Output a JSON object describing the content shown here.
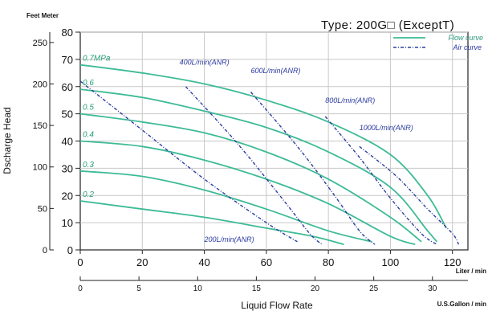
{
  "chart_data": {
    "type": "line",
    "title": "Type: 200G□ (ExceptT)",
    "units_label": "Feet Meter",
    "ylabel": "Dscharge Head",
    "xlabel": "Liquid Flow Rate",
    "x_unit_top": "Liter / min",
    "x_unit_bottom": "U.S.Gallon / min",
    "xlim": [
      0,
      125
    ],
    "ylim": [
      0,
      80
    ],
    "grid": true,
    "legend_position": "top-right",
    "x_ticks": [
      "0",
      "20",
      "40",
      "60",
      "80",
      "100",
      "120"
    ],
    "y_ticks": [
      "0",
      "10",
      "20",
      "30",
      "40",
      "50",
      "60",
      "70",
      "80"
    ],
    "x2_ticks": [
      "0",
      "5",
      "10",
      "15",
      "20",
      "25",
      "30"
    ],
    "y2_ticks": [
      "0",
      "50",
      "100",
      "150",
      "200",
      "250"
    ],
    "legend": {
      "flow": "Flow curve",
      "air": "Air curve"
    },
    "colors": {
      "flow": "#3dbb96",
      "air": "#2b3e9e"
    },
    "flow_curves": [
      {
        "label": "0.7MPa",
        "x": [
          0,
          20,
          40,
          60,
          80,
          100,
          112,
          118
        ],
        "y": [
          68,
          65,
          61,
          55,
          47,
          35,
          20,
          8
        ]
      },
      {
        "label": "0.6",
        "x": [
          0,
          20,
          40,
          60,
          80,
          100,
          112,
          115
        ],
        "y": [
          59,
          56,
          51,
          45,
          36,
          23,
          7,
          3
        ]
      },
      {
        "label": "0.5",
        "x": [
          0,
          20,
          40,
          60,
          80,
          100,
          110
        ],
        "y": [
          50,
          47,
          43,
          36,
          26,
          12,
          3
        ]
      },
      {
        "label": "0.4",
        "x": [
          0,
          20,
          40,
          60,
          80,
          100,
          108
        ],
        "y": [
          40,
          38,
          33,
          26,
          17,
          5,
          2
        ]
      },
      {
        "label": "0.3",
        "x": [
          0,
          20,
          40,
          60,
          80,
          94
        ],
        "y": [
          29,
          27,
          22,
          15,
          7,
          3
        ]
      },
      {
        "label": "0.2",
        "x": [
          0,
          20,
          40,
          60,
          75,
          85
        ],
        "y": [
          18,
          15,
          12,
          8,
          5,
          2
        ]
      }
    ],
    "air_curves": [
      {
        "label": "200L/min(ANR)",
        "x": [
          0,
          20,
          40,
          60,
          70
        ],
        "y": [
          62,
          44,
          26,
          10,
          3
        ]
      },
      {
        "label": "400L/min(ANR)",
        "x": [
          34,
          50,
          65,
          74,
          78
        ],
        "y": [
          60,
          40,
          19,
          6,
          2
        ]
      },
      {
        "label": "600L/min(ANR)",
        "x": [
          55,
          70,
          82,
          90,
          95
        ],
        "y": [
          58,
          38,
          20,
          7,
          2
        ]
      },
      {
        "label": "800L/min(ANR)",
        "x": [
          79,
          90,
          100,
          110,
          115
        ],
        "y": [
          49,
          34,
          19,
          6,
          2
        ]
      },
      {
        "label": "1000L/min(ANR)",
        "x": [
          90,
          102,
          112,
          120,
          122
        ],
        "y": [
          38,
          27,
          15,
          6,
          2
        ]
      }
    ]
  }
}
